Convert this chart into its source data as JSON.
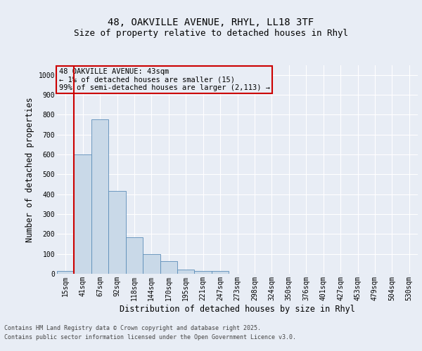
{
  "title_line1": "48, OAKVILLE AVENUE, RHYL, LL18 3TF",
  "title_line2": "Size of property relative to detached houses in Rhyl",
  "xlabel": "Distribution of detached houses by size in Rhyl",
  "ylabel": "Number of detached properties",
  "bar_labels": [
    "15sqm",
    "41sqm",
    "67sqm",
    "92sqm",
    "118sqm",
    "144sqm",
    "170sqm",
    "195sqm",
    "221sqm",
    "247sqm",
    "273sqm",
    "298sqm",
    "324sqm",
    "350sqm",
    "376sqm",
    "401sqm",
    "427sqm",
    "453sqm",
    "479sqm",
    "504sqm",
    "530sqm"
  ],
  "bar_values": [
    15,
    600,
    775,
    415,
    185,
    100,
    65,
    20,
    15,
    15,
    0,
    0,
    0,
    0,
    0,
    0,
    0,
    0,
    0,
    0,
    0
  ],
  "bar_color": "#c9d9e8",
  "bar_edge_color": "#5b8db8",
  "vline_color": "#cc0000",
  "vline_x": 0.5,
  "ylim": [
    0,
    1050
  ],
  "yticks": [
    0,
    100,
    200,
    300,
    400,
    500,
    600,
    700,
    800,
    900,
    1000
  ],
  "annotation_title": "48 OAKVILLE AVENUE: 43sqm",
  "annotation_line1": "← 1% of detached houses are smaller (15)",
  "annotation_line2": "99% of semi-detached houses are larger (2,113) →",
  "annotation_box_color": "#cc0000",
  "footer_line1": "Contains HM Land Registry data © Crown copyright and database right 2025.",
  "footer_line2": "Contains public sector information licensed under the Open Government Licence v3.0.",
  "bg_color": "#e8edf5",
  "plot_bg_color": "#e8edf5",
  "grid_color": "#ffffff",
  "title_fontsize": 10,
  "subtitle_fontsize": 9,
  "axis_label_fontsize": 8.5,
  "tick_fontsize": 7,
  "annotation_fontsize": 7.5,
  "footer_fontsize": 6
}
